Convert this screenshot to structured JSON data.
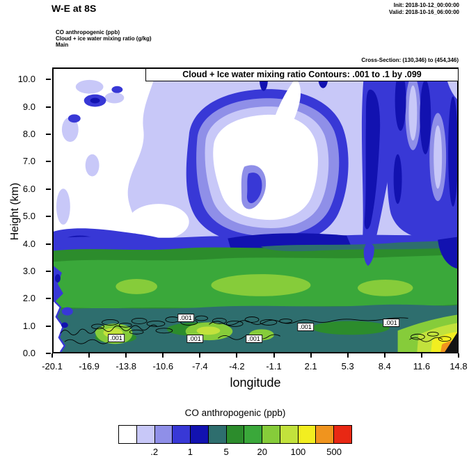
{
  "header": {
    "title": "W-E at 8S",
    "init_line": "Init: 2018-10-12_00:00:00",
    "valid_line": "Valid: 2018-10-16_06:00:00",
    "field_lines": [
      "CO anthropogenic   (ppb)",
      "Cloud + ice water mixing ratio   (g/kg)",
      "Main"
    ],
    "cross_section": "Cross-Section: (130,346) to (454,346)"
  },
  "plot": {
    "contour_title": "Cloud + Ice water mixing ratio Contours: .001 to .1 by .099",
    "xlabel": "longitude",
    "ylabel": "Height (km)",
    "x_ticks": [
      "-20.1",
      "-16.9",
      "-13.8",
      "-10.6",
      "-7.4",
      "-4.2",
      "-1.1",
      "2.1",
      "5.3",
      "8.4",
      "11.6",
      "14.8"
    ],
    "y_ticks": [
      "0.0",
      "1.0",
      "2.0",
      "3.0",
      "4.0",
      "5.0",
      "6.0",
      "7.0",
      "8.0",
      "9.0",
      "10.0"
    ],
    "contour_labels": [
      ".001",
      ".001",
      ".001",
      ".001",
      ".001",
      ".001"
    ]
  },
  "colorbar": {
    "title": "CO anthropogenic  (ppb)",
    "labels": [
      ".2",
      "1",
      "5",
      "20",
      "100",
      "500"
    ],
    "boundary_indices": [
      2,
      4,
      6,
      8,
      10,
      12
    ],
    "colors": [
      "#ffffff",
      "#c8c8f8",
      "#8f8fe8",
      "#3838d6",
      "#1212b0",
      "#2e6e6e",
      "#2c8c2c",
      "#3aa83a",
      "#86cc3a",
      "#c2e23c",
      "#f2ee20",
      "#f0941e",
      "#e82814"
    ]
  },
  "chart_data": {
    "type": "heatmap",
    "subtype": "filled-contour-vertical-cross-section",
    "title": "W-E at 8S",
    "xlabel": "longitude",
    "ylabel": "Height (km)",
    "x_range": [
      -20.1,
      14.8
    ],
    "y_range": [
      0.0,
      10.4
    ],
    "x_ticks": [
      -20.1,
      -16.9,
      -13.8,
      -10.6,
      -7.4,
      -4.2,
      -1.1,
      2.1,
      5.3,
      8.4,
      11.6,
      14.8
    ],
    "y_ticks": [
      0,
      1,
      2,
      3,
      4,
      5,
      6,
      7,
      8,
      9,
      10
    ],
    "fill_variable": "CO anthropogenic (ppb)",
    "fill_levels": [
      0.1,
      0.2,
      0.5,
      1,
      2,
      5,
      10,
      20,
      50,
      100,
      200,
      500
    ],
    "fill_colors": [
      "#ffffff",
      "#c8c8f8",
      "#8f8fe8",
      "#3838d6",
      "#1212b0",
      "#2e6e6e",
      "#2c8c2c",
      "#3aa83a",
      "#86cc3a",
      "#c2e23c",
      "#f2ee20",
      "#f0941e",
      "#e82814"
    ],
    "contour_variable": "Cloud + Ice water mixing ratio (g/kg)",
    "contour_levels": [
      0.001,
      0.1
    ],
    "contour_note": "Contours: .001 to .1 by .099",
    "contour_label_value": ".001",
    "legend_position": "bottom",
    "estimated_values_ppb": {
      "note": "CO values estimated from fill colors at tick longitudes",
      "heights_km": [
        0.5,
        1.5,
        2.5,
        3.5,
        4.5,
        5.5,
        6.5,
        7.5,
        8.5,
        9.5
      ],
      "columns": [
        {
          "lon": -20.1,
          "values": [
            3,
            3,
            7,
            3,
            0.7,
            0.15,
            0.05,
            0.05,
            0.05,
            0.15
          ]
        },
        {
          "lon": -16.9,
          "values": [
            30,
            7,
            7,
            7,
            1.5,
            0.3,
            0.05,
            0.05,
            0.15,
            0.7
          ]
        },
        {
          "lon": -13.8,
          "values": [
            30,
            7,
            7,
            7,
            1.5,
            0.3,
            0.15,
            0.05,
            0.3,
            0.3
          ]
        },
        {
          "lon": -10.6,
          "values": [
            3,
            7,
            15,
            7,
            1.5,
            0.7,
            0.3,
            0.15,
            0.7,
            0.3
          ]
        },
        {
          "lon": -7.4,
          "values": [
            30,
            7,
            15,
            7,
            1.5,
            0.7,
            0.3,
            0.05,
            0.15,
            0.7
          ]
        },
        {
          "lon": -4.2,
          "values": [
            15,
            7,
            15,
            7,
            3,
            0.3,
            0.05,
            0.05,
            0.15,
            0.3
          ]
        },
        {
          "lon": -1.1,
          "values": [
            3,
            7,
            15,
            7,
            3,
            0.15,
            0.05,
            0.05,
            0.3,
            0.7
          ]
        },
        {
          "lon": 2.1,
          "values": [
            3,
            7,
            15,
            7,
            3,
            0.7,
            0.3,
            0.15,
            0.7,
            0.7
          ]
        },
        {
          "lon": 5.3,
          "values": [
            3,
            7,
            7,
            7,
            3,
            1.5,
            0.7,
            0.7,
            1.5,
            1.5
          ]
        },
        {
          "lon": 8.4,
          "values": [
            3,
            7,
            7,
            7,
            3,
            1.5,
            1.5,
            1.5,
            0.7,
            0.7
          ]
        },
        {
          "lon": 11.6,
          "values": [
            30,
            7,
            7,
            7,
            1.5,
            0.7,
            0.3,
            0.3,
            0.3,
            0.7
          ]
        },
        {
          "lon": 14.8,
          "values": [
            300,
            30,
            15,
            7,
            3,
            1.5,
            0.7,
            0.7,
            0.7,
            1.5
          ]
        }
      ]
    },
    "cloud_contour_region": "thin 0.001 g/kg cloud-water contours between 0.3 and 1.4 km across lon -19 to 12"
  }
}
